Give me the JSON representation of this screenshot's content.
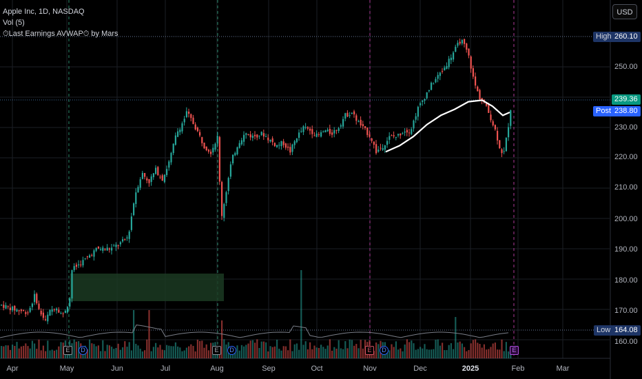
{
  "legend": {
    "symbol_line": "Apple Inc, 1D, NASDAQ",
    "volume_line": "Vol (5)",
    "indicator_line": "⏱Last Earnings AVWAP⏱ by Mars"
  },
  "currency_button": "USD",
  "price_axis": {
    "ticks": [
      "250.00",
      "240.00",
      "230.00",
      "220.00",
      "210.00",
      "200.00",
      "190.00",
      "180.00",
      "170.00",
      "160.00"
    ]
  },
  "badges": {
    "high_label": "High",
    "high_value": "260.10",
    "last_value": "239.36",
    "post_label": "Post",
    "post_value": "238.80",
    "low_label": "Low",
    "low_value": "164.08"
  },
  "time_axis": {
    "labels": [
      "Apr",
      "May",
      "Jun",
      "Jul",
      "Aug",
      "Sep",
      "Oct",
      "Nov",
      "Dec",
      "2025",
      "Feb",
      "Mar"
    ]
  },
  "events": {
    "earnings_label": "E",
    "dividend_label": "D"
  },
  "colors": {
    "up": "#26a69a",
    "down": "#ef5350",
    "background": "#000000",
    "avwap": "#ffffff",
    "earnings_line": "#b03a9a",
    "grid": "#1c1f26",
    "box": "#1b3a22",
    "badge_blue": "#2962ff",
    "badge_navy": "#1e3566"
  },
  "chart_data": {
    "type": "candlestick",
    "title": "Apple Inc, 1D, NASDAQ",
    "ylim": [
      158,
      263
    ],
    "series_path": [
      [
        0,
        171.5
      ],
      [
        20,
        170
      ],
      [
        40,
        169
      ],
      [
        50,
        175
      ],
      [
        55,
        170
      ],
      [
        65,
        166
      ],
      [
        70,
        169
      ],
      [
        80,
        171
      ],
      [
        90,
        168
      ],
      [
        100,
        173
      ],
      [
        103,
        183
      ],
      [
        120,
        186
      ],
      [
        140,
        190
      ],
      [
        160,
        190
      ],
      [
        175,
        192
      ],
      [
        185,
        194
      ],
      [
        195,
        208
      ],
      [
        205,
        215
      ],
      [
        215,
        212
      ],
      [
        225,
        216
      ],
      [
        235,
        213
      ],
      [
        245,
        219
      ],
      [
        255,
        228
      ],
      [
        265,
        232
      ],
      [
        270,
        235
      ],
      [
        278,
        232
      ],
      [
        285,
        229
      ],
      [
        295,
        224
      ],
      [
        305,
        222
      ],
      [
        315,
        227
      ],
      [
        320,
        200
      ],
      [
        325,
        206
      ],
      [
        335,
        219
      ],
      [
        345,
        225
      ],
      [
        355,
        228
      ],
      [
        365,
        227
      ],
      [
        380,
        228
      ],
      [
        390,
        226
      ],
      [
        400,
        224
      ],
      [
        410,
        225
      ],
      [
        420,
        222
      ],
      [
        430,
        227
      ],
      [
        440,
        230
      ],
      [
        450,
        229
      ],
      [
        460,
        227
      ],
      [
        470,
        229
      ],
      [
        480,
        228
      ],
      [
        490,
        230
      ],
      [
        500,
        234
      ],
      [
        510,
        235
      ],
      [
        515,
        233
      ],
      [
        525,
        230
      ],
      [
        537,
        227
      ],
      [
        545,
        222
      ],
      [
        555,
        224
      ],
      [
        565,
        227
      ],
      [
        575,
        227
      ],
      [
        585,
        229
      ],
      [
        595,
        229
      ],
      [
        605,
        236
      ],
      [
        615,
        240
      ],
      [
        625,
        244
      ],
      [
        635,
        247
      ],
      [
        645,
        250
      ],
      [
        655,
        254
      ],
      [
        663,
        257
      ],
      [
        668,
        259
      ],
      [
        675,
        256
      ],
      [
        680,
        253
      ],
      [
        687,
        245
      ],
      [
        695,
        240
      ],
      [
        702,
        238
      ],
      [
        710,
        234
      ],
      [
        718,
        229
      ],
      [
        725,
        223
      ],
      [
        730,
        221
      ],
      [
        736,
        229
      ],
      [
        740,
        236
      ],
      [
        744,
        239.36
      ]
    ],
    "avwap": [
      [
        560,
        222
      ],
      [
        580,
        224
      ],
      [
        600,
        227
      ],
      [
        620,
        231
      ],
      [
        640,
        234
      ],
      [
        660,
        236
      ],
      [
        680,
        238.5
      ],
      [
        700,
        239
      ],
      [
        715,
        237
      ],
      [
        730,
        234
      ],
      [
        740,
        235
      ]
    ],
    "events": [
      {
        "type": "earnings",
        "date": "May"
      },
      {
        "type": "dividend",
        "date": "May"
      },
      {
        "type": "earnings",
        "date": "Aug"
      },
      {
        "type": "dividend",
        "date": "Aug"
      },
      {
        "type": "earnings",
        "date": "Nov"
      },
      {
        "type": "dividend",
        "date": "Nov"
      },
      {
        "type": "earnings",
        "date": "Jan 2025"
      }
    ]
  }
}
